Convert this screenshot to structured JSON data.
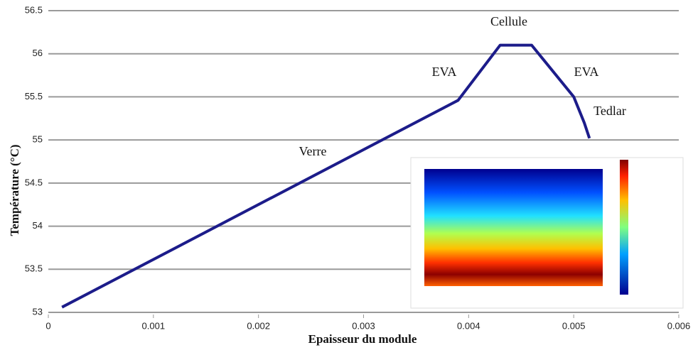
{
  "chart_data": {
    "type": "line",
    "x_label": "Epaisseur du module",
    "y_label": "Température (°C)",
    "x": [
      0.00013,
      0.0039,
      0.0043,
      0.0046,
      0.005,
      0.0051,
      0.00515
    ],
    "series": [
      {
        "color": "#1c1c8a",
        "values": [
          53.06,
          55.46,
          56.1,
          56.1,
          55.5,
          55.2,
          55.02
        ]
      }
    ],
    "xlim": [
      0,
      0.006
    ],
    "xticks": [
      0,
      0.001,
      0.002,
      0.003,
      0.004,
      0.005,
      0.006
    ],
    "ylim": [
      53,
      56.5
    ],
    "yticks": [
      53,
      53.5,
      54,
      54.5,
      55,
      55.5,
      56,
      56.5
    ],
    "grid": true,
    "annotations": [
      "Verre",
      "EVA",
      "Cellule",
      "EVA",
      "Tedlar"
    ]
  }
}
